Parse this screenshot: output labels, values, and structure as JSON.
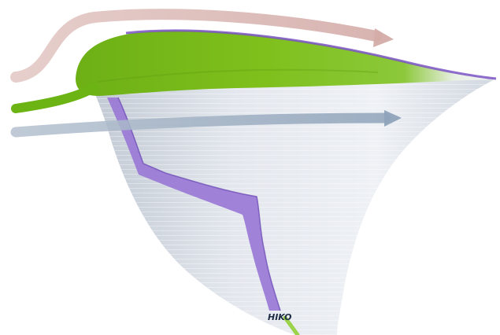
{
  "label": "HIKO",
  "colors": {
    "background": "#ffffff",
    "funnel_light": "#e9ecf1",
    "funnel_shade": "#c9cfd8",
    "leaf_green": "#7fc01c",
    "leaf_dark_green": "#5e9e10",
    "purple_band": "#9a78d6",
    "purple_edge": "#6f4fb8",
    "arrow_pink": "#d6b4b0",
    "arrow_blue": "#9fb0c4"
  },
  "icons": {
    "top_arrow": "arrow-right-icon",
    "middle_arrow": "arrow-right-icon"
  }
}
